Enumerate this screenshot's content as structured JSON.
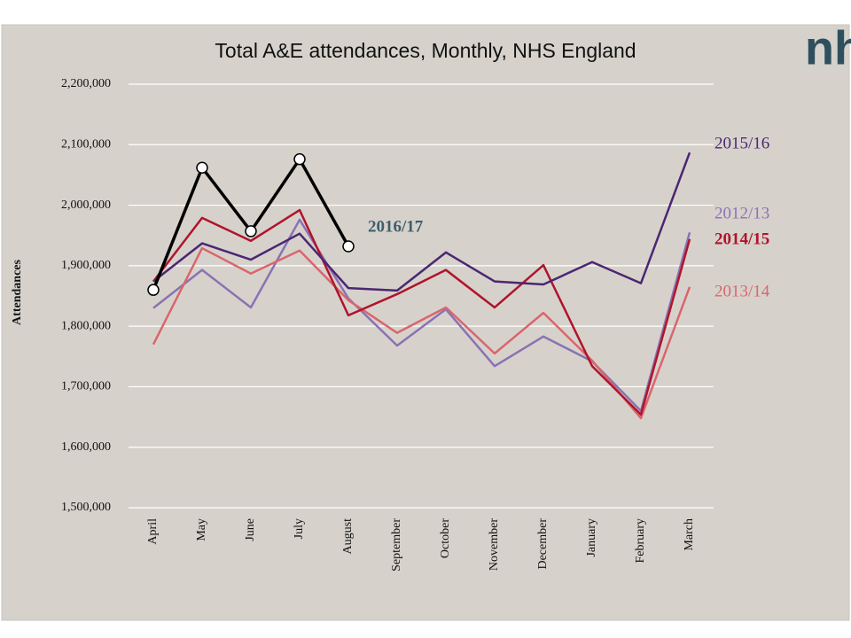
{
  "chart_data": {
    "type": "line",
    "title": "Total A&E attendances, Monthly,  NHS England",
    "logo": "nh",
    "y_label": "Attendances",
    "categories": [
      "April",
      "May",
      "June",
      "July",
      "August",
      "September",
      "October",
      "November",
      "December",
      "January",
      "February",
      "March"
    ],
    "ylim": [
      1500000,
      2200000
    ],
    "yticks": [
      {
        "value": 1500000,
        "label": "1,500,000"
      },
      {
        "value": 1600000,
        "label": "1,600,000"
      },
      {
        "value": 1700000,
        "label": "1,700,000"
      },
      {
        "value": 1800000,
        "label": "1,800,000"
      },
      {
        "value": 1900000,
        "label": "1,900,000"
      },
      {
        "value": 2000000,
        "label": "2,000,000"
      },
      {
        "value": 2100000,
        "label": "2,100,000"
      },
      {
        "value": 2200000,
        "label": "2,200,000"
      }
    ],
    "grid": true,
    "series": [
      {
        "name": "2016/17",
        "color": "#000000",
        "label_color": "#3d5f6e",
        "marker": "circle",
        "values": [
          1860000,
          2062000,
          1957000,
          2076000,
          1932000,
          null,
          null,
          null,
          null,
          null,
          null,
          null
        ]
      },
      {
        "name": "2015/16",
        "color": "#4b2673",
        "values": [
          1874000,
          1937000,
          1910000,
          1953000,
          1863000,
          1859000,
          1922000,
          1874000,
          1869000,
          1906000,
          1871000,
          2087000
        ]
      },
      {
        "name": "2014/15",
        "color": "#b0142c",
        "values": [
          1874000,
          1979000,
          1941000,
          1992000,
          1818000,
          1853000,
          1893000,
          1831000,
          1901000,
          1734000,
          1654000,
          1944000
        ]
      },
      {
        "name": "2013/14",
        "color": "#d9666e",
        "values": [
          1770000,
          1929000,
          1887000,
          1925000,
          1843000,
          1789000,
          1831000,
          1755000,
          1822000,
          1743000,
          1648000,
          1865000
        ]
      },
      {
        "name": "2012/13",
        "color": "#8a72b4",
        "values": [
          1830000,
          1893000,
          1831000,
          1976000,
          1846000,
          1768000,
          1828000,
          1734000,
          1783000,
          1742000,
          1660000,
          1955000
        ]
      }
    ]
  }
}
